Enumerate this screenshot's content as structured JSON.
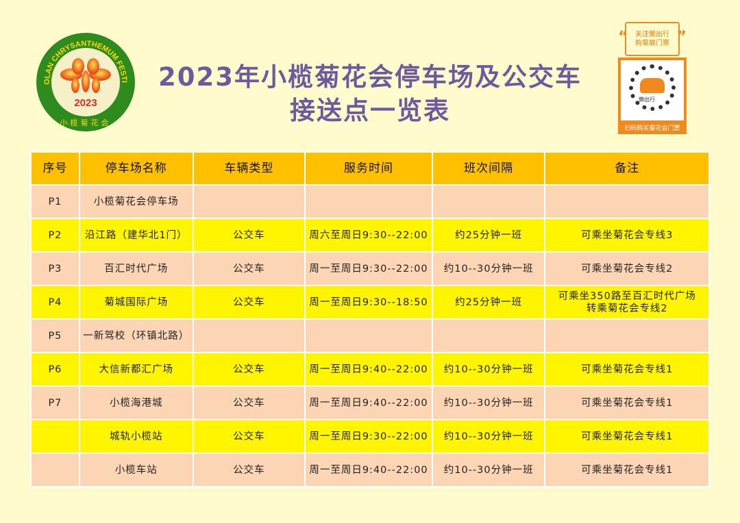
{
  "logo": {
    "ring_text": "XIAOLAN CHRYSANTHEMUM FESTIVAL",
    "year": "2023",
    "cn_name": "小榄菊花会"
  },
  "title": {
    "line1": "2023年小榄菊花会停车场及公交车",
    "line2": "接送点一览表"
  },
  "qr": {
    "bubble_line1": "关注懒出行",
    "bubble_line2": "购菊展门票",
    "brand": "懒出行",
    "caption": "扫码购买菊花会门票"
  },
  "colors": {
    "header": "#ffc000",
    "row_peach": "#fcd5b5",
    "row_yellow": "#fff500",
    "title": "#6b5b9e",
    "background": "#fffbcc"
  },
  "table": {
    "headers": [
      "序号",
      "停车场名称",
      "车辆类型",
      "服务时间",
      "班次间隔",
      "备注"
    ],
    "rows": [
      {
        "style": "peach",
        "cells": [
          "P1",
          "小榄菊花会停车场",
          "",
          "",
          "",
          ""
        ]
      },
      {
        "style": "yellow",
        "cells": [
          "P2",
          "沿江路（建华北1门）",
          "公交车",
          "周六至周日9:30--22:00",
          "约25分钟一班",
          "可乘坐菊花会专线3"
        ]
      },
      {
        "style": "peach",
        "cells": [
          "P3",
          "百汇时代广场",
          "公交车",
          "周一至周日9:30--22:00",
          "约10--30分钟一班",
          "可乘坐菊花会专线2"
        ]
      },
      {
        "style": "yellow",
        "cells": [
          "P4",
          "菊城国际广场",
          "公交车",
          "周一至周日9:30--18:50",
          "约25分钟一班",
          "可乘坐350路至百汇时代广场\n转乘菊花会专线2"
        ]
      },
      {
        "style": "peach",
        "cells": [
          "P5",
          "一新驾校（环镇北路）",
          "",
          "",
          "",
          ""
        ]
      },
      {
        "style": "yellow",
        "cells": [
          "P6",
          "大信新都汇广场",
          "公交车",
          "周一至周日9:40--22:00",
          "约10--30分钟一班",
          "可乘坐菊花会专线1"
        ]
      },
      {
        "style": "peach",
        "cells": [
          "P7",
          "小榄海港城",
          "公交车",
          "周一至周日9:40--22:00",
          "约10--30分钟一班",
          "可乘坐菊花会专线1"
        ]
      },
      {
        "style": "yellow",
        "cells": [
          "",
          "城轨小榄站",
          "公交车",
          "周一至周日9:30--22:00",
          "约10--30分钟一班",
          "可乘坐菊花会专线1"
        ]
      },
      {
        "style": "peach",
        "cells": [
          "",
          "小榄车站",
          "公交车",
          "周一至周日9:40--22:00",
          "约10--30分钟一班",
          "可乘坐菊花会专线1"
        ]
      }
    ]
  }
}
